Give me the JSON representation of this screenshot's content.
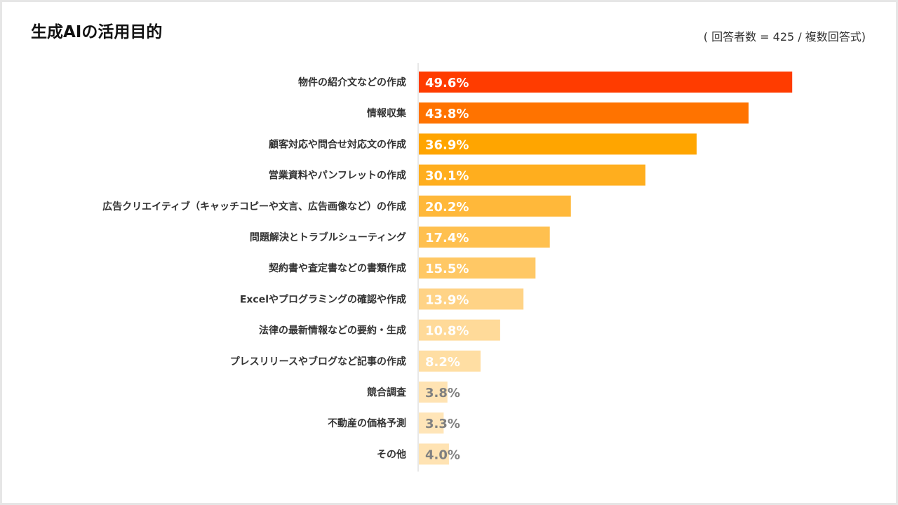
{
  "title": "生成AIの活用目的",
  "note": "( 回答者数 = 425 / 複数回答式)",
  "chart_data": {
    "type": "bar",
    "orientation": "horizontal",
    "title": "生成AIの活用目的",
    "categories": [
      "物件の紹介文などの作成",
      "情報収集",
      "顧客対応や問合せ対応文の作成",
      "営業資料やパンフレットの作成",
      "広告クリエイティブ（キャッチコピーや文言、広告画像など）の作成",
      "問題解決とトラブルシューティング",
      "契約書や査定書などの書類作成",
      "Excelやプログラミングの確認や作成",
      "法律の最新情報などの要約・生成",
      "プレスリリースやブログなど記事の作成",
      "競合調査",
      "不動産の価格予測",
      "その他"
    ],
    "values": [
      49.6,
      43.8,
      36.9,
      30.1,
      20.2,
      17.4,
      15.5,
      13.9,
      10.8,
      8.2,
      3.8,
      3.3,
      4.0
    ],
    "value_labels": [
      "49.6%",
      "43.8%",
      "36.9%",
      "30.1%",
      "20.2%",
      "17.4%",
      "15.5%",
      "13.9%",
      "10.8%",
      "8.2%",
      "3.8%",
      "3.3%",
      "4.0%"
    ],
    "colors": [
      "#ff3c00",
      "#ff7300",
      "#ffa500",
      "#ffae1e",
      "#ffb83a",
      "#ffc04f",
      "#ffc865",
      "#ffd386",
      "#ffda99",
      "#ffdea3",
      "#ffe3b3",
      "#ffe5b8",
      "#ffe3b3"
    ],
    "label_colors": [
      "#ffffff",
      "#ffffff",
      "#ffffff",
      "#ffffff",
      "#ffffff",
      "#ffffff",
      "#ffffff",
      "#ffffff",
      "#ffffff",
      "#ffffff",
      "#808080",
      "#808080",
      "#808080"
    ],
    "xlim": [
      0,
      100
    ],
    "grid": false,
    "legend": "none"
  }
}
